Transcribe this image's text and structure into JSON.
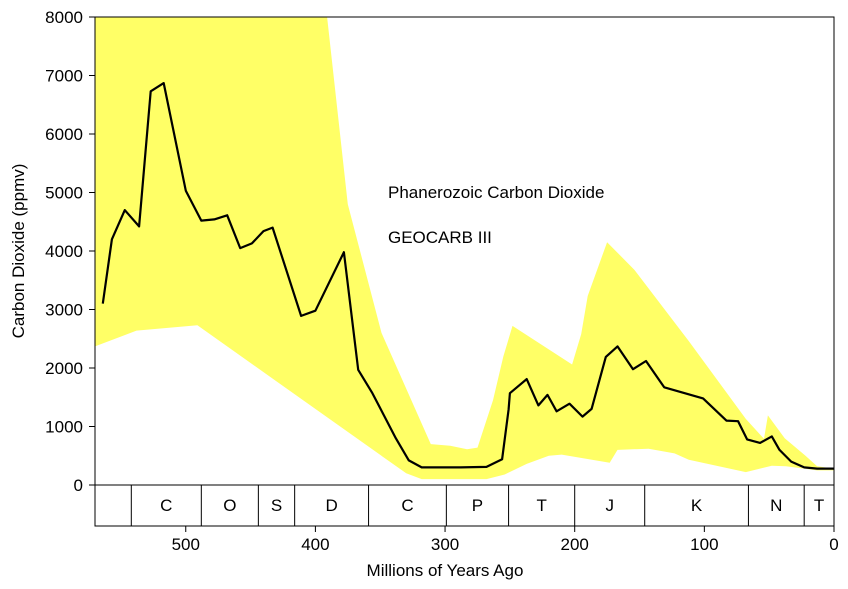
{
  "chart_data": {
    "type": "line",
    "title": "",
    "xlabel": "Millions of Years Ago",
    "ylabel": "Carbon Dioxide (ppmv)",
    "xlim": [
      570,
      0
    ],
    "ylim": [
      0,
      8000
    ],
    "x_ticks": [
      500,
      400,
      300,
      200,
      100,
      0
    ],
    "y_ticks": [
      0,
      1000,
      2000,
      3000,
      4000,
      5000,
      6000,
      7000,
      8000
    ],
    "annotations": [
      "Phanerozoic Carbon Dioxide",
      "GEOCARB III"
    ],
    "periods": [
      {
        "label": "",
        "start": 570,
        "end": 542
      },
      {
        "label": "C",
        "start": 542,
        "end": 488
      },
      {
        "label": "O",
        "start": 488,
        "end": 444
      },
      {
        "label": "S",
        "start": 444,
        "end": 416
      },
      {
        "label": "D",
        "start": 416,
        "end": 359
      },
      {
        "label": "C",
        "start": 359,
        "end": 299
      },
      {
        "label": "P",
        "start": 299,
        "end": 251
      },
      {
        "label": "T",
        "start": 251,
        "end": 200
      },
      {
        "label": "J",
        "start": 200,
        "end": 146
      },
      {
        "label": "K",
        "start": 146,
        "end": 66
      },
      {
        "label": "N",
        "start": 66,
        "end": 23
      },
      {
        "label": "T",
        "start": 23,
        "end": 0
      }
    ],
    "series": [
      {
        "values": [
          [
            564,
            3100
          ],
          [
            557,
            4200
          ],
          [
            547,
            4700
          ],
          [
            536,
            4420
          ],
          [
            527,
            6730
          ],
          [
            517,
            6870
          ],
          [
            500,
            5030
          ],
          [
            488,
            4520
          ],
          [
            478,
            4540
          ],
          [
            468,
            4610
          ],
          [
            458,
            4050
          ],
          [
            449,
            4130
          ],
          [
            440,
            4340
          ],
          [
            433,
            4400
          ],
          [
            411,
            2890
          ],
          [
            400,
            2980
          ],
          [
            378,
            3980
          ],
          [
            367,
            1970
          ],
          [
            356,
            1570
          ],
          [
            338,
            800
          ],
          [
            328,
            420
          ],
          [
            318,
            300
          ],
          [
            288,
            300
          ],
          [
            268,
            310
          ],
          [
            256,
            440
          ],
          [
            251,
            1290
          ],
          [
            250,
            1570
          ],
          [
            237,
            1810
          ],
          [
            228,
            1360
          ],
          [
            221,
            1540
          ],
          [
            214,
            1260
          ],
          [
            204,
            1390
          ],
          [
            194,
            1170
          ],
          [
            187,
            1300
          ],
          [
            176,
            2190
          ],
          [
            167,
            2370
          ],
          [
            155,
            1980
          ],
          [
            145,
            2120
          ],
          [
            131,
            1670
          ],
          [
            101,
            1480
          ],
          [
            83,
            1100
          ],
          [
            74,
            1090
          ],
          [
            67,
            780
          ],
          [
            57,
            720
          ],
          [
            48,
            830
          ],
          [
            42,
            600
          ],
          [
            33,
            400
          ],
          [
            23,
            300
          ],
          [
            13,
            280
          ],
          [
            0,
            280
          ]
        ]
      }
    ],
    "uncertainty_band": {
      "upper": [
        [
          570,
          8000
        ],
        [
          391,
          8000
        ],
        [
          375,
          4800
        ],
        [
          349,
          2600
        ],
        [
          311,
          700
        ],
        [
          296,
          670
        ],
        [
          283,
          610
        ],
        [
          275,
          640
        ],
        [
          263,
          1450
        ],
        [
          255,
          2200
        ],
        [
          248,
          2720
        ],
        [
          202,
          2060
        ],
        [
          195,
          2580
        ],
        [
          190,
          3230
        ],
        [
          175,
          4150
        ],
        [
          154,
          3680
        ],
        [
          112,
          2460
        ],
        [
          68,
          1130
        ],
        [
          54,
          790
        ],
        [
          51,
          1190
        ],
        [
          38,
          800
        ],
        [
          22,
          500
        ],
        [
          13,
          320
        ],
        [
          0,
          280
        ]
      ],
      "lower": [
        [
          570,
          2370
        ],
        [
          538,
          2640
        ],
        [
          491,
          2730
        ],
        [
          330,
          200
        ],
        [
          318,
          100
        ],
        [
          268,
          100
        ],
        [
          254,
          180
        ],
        [
          237,
          360
        ],
        [
          220,
          500
        ],
        [
          210,
          520
        ],
        [
          173,
          380
        ],
        [
          167,
          600
        ],
        [
          143,
          620
        ],
        [
          123,
          540
        ],
        [
          112,
          430
        ],
        [
          68,
          220
        ],
        [
          48,
          330
        ],
        [
          37,
          320
        ],
        [
          13,
          250
        ],
        [
          0,
          250
        ]
      ]
    },
    "colors": {
      "band": "#ffff66",
      "line": "#000000"
    },
    "grid": false
  }
}
